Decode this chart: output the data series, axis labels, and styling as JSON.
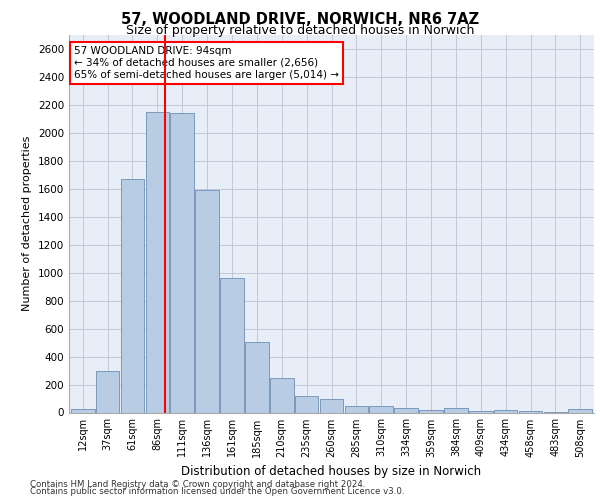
{
  "title_line1": "57, WOODLAND DRIVE, NORWICH, NR6 7AZ",
  "title_line2": "Size of property relative to detached houses in Norwich",
  "xlabel": "Distribution of detached houses by size in Norwich",
  "ylabel": "Number of detached properties",
  "bar_labels": [
    "12sqm",
    "37sqm",
    "61sqm",
    "86sqm",
    "111sqm",
    "136sqm",
    "161sqm",
    "185sqm",
    "210sqm",
    "235sqm",
    "260sqm",
    "285sqm",
    "310sqm",
    "334sqm",
    "359sqm",
    "384sqm",
    "409sqm",
    "434sqm",
    "458sqm",
    "483sqm",
    "508sqm"
  ],
  "bar_values": [
    25,
    300,
    1670,
    2150,
    2140,
    1590,
    960,
    505,
    250,
    120,
    95,
    50,
    45,
    30,
    20,
    30,
    10,
    20,
    10,
    5,
    25
  ],
  "bar_color": "#b8cce4",
  "bar_edge_color": "#5a7fa8",
  "annotation_line1": "57 WOODLAND DRIVE: 94sqm",
  "annotation_line2": "← 34% of detached houses are smaller (2,656)",
  "annotation_line3": "65% of semi-detached houses are larger (5,014) →",
  "annotation_box_color": "white",
  "annotation_box_edge": "red",
  "red_line_color": "red",
  "ylim": [
    0,
    2700
  ],
  "yticks": [
    0,
    200,
    400,
    600,
    800,
    1000,
    1200,
    1400,
    1600,
    1800,
    2000,
    2200,
    2400,
    2600
  ],
  "grid_color": "#c0c8d8",
  "bg_color": "#e8eef8",
  "footer_line1": "Contains HM Land Registry data © Crown copyright and database right 2024.",
  "footer_line2": "Contains public sector information licensed under the Open Government Licence v3.0.",
  "property_sqm": 94,
  "bin_width": 25
}
